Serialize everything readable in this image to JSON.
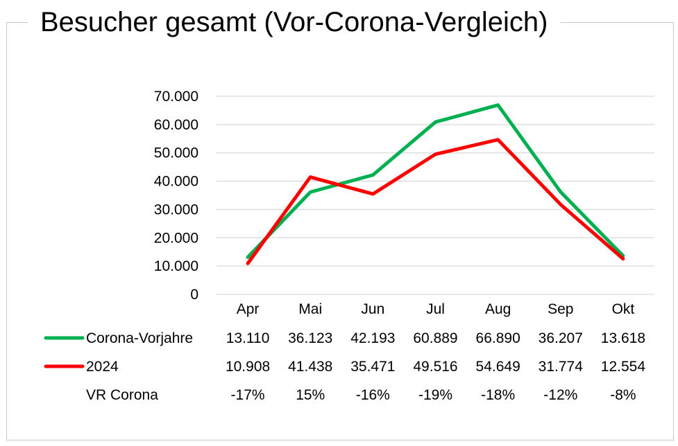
{
  "title": "Besucher gesamt (Vor-Corona-Vergleich)",
  "chart_data": {
    "type": "line",
    "title": "Besucher gesamt (Vor-Corona-Vergleich)",
    "categories": [
      "Apr",
      "Mai",
      "Jun",
      "Jul",
      "Aug",
      "Sep",
      "Okt"
    ],
    "ylim": [
      0,
      70000
    ],
    "yticks": [
      0,
      10000,
      20000,
      30000,
      40000,
      50000,
      60000,
      70000
    ],
    "ytick_labels": [
      "0",
      "10.000",
      "20.000",
      "30.000",
      "40.000",
      "50.000",
      "60.000",
      "70.000"
    ],
    "grid": true,
    "legend": "data-table",
    "series": [
      {
        "name": "Corona-Vorjahre",
        "color": "#00b050",
        "values": [
          13110,
          36123,
          42193,
          60889,
          66890,
          36207,
          13618
        ],
        "labels": [
          "13.110",
          "36.123",
          "42.193",
          "60.889",
          "66.890",
          "36.207",
          "13.618"
        ]
      },
      {
        "name": "2024",
        "color": "#ff0000",
        "values": [
          10908,
          41438,
          35471,
          49516,
          54649,
          31774,
          12554
        ],
        "labels": [
          "10.908",
          "41.438",
          "35.471",
          "49.516",
          "54.649",
          "31.774",
          "12.554"
        ]
      }
    ],
    "extra_rows": [
      {
        "name": "VR Corona",
        "labels": [
          "-17%",
          "15%",
          "-16%",
          "-19%",
          "-18%",
          "-12%",
          "-8%"
        ]
      }
    ]
  }
}
